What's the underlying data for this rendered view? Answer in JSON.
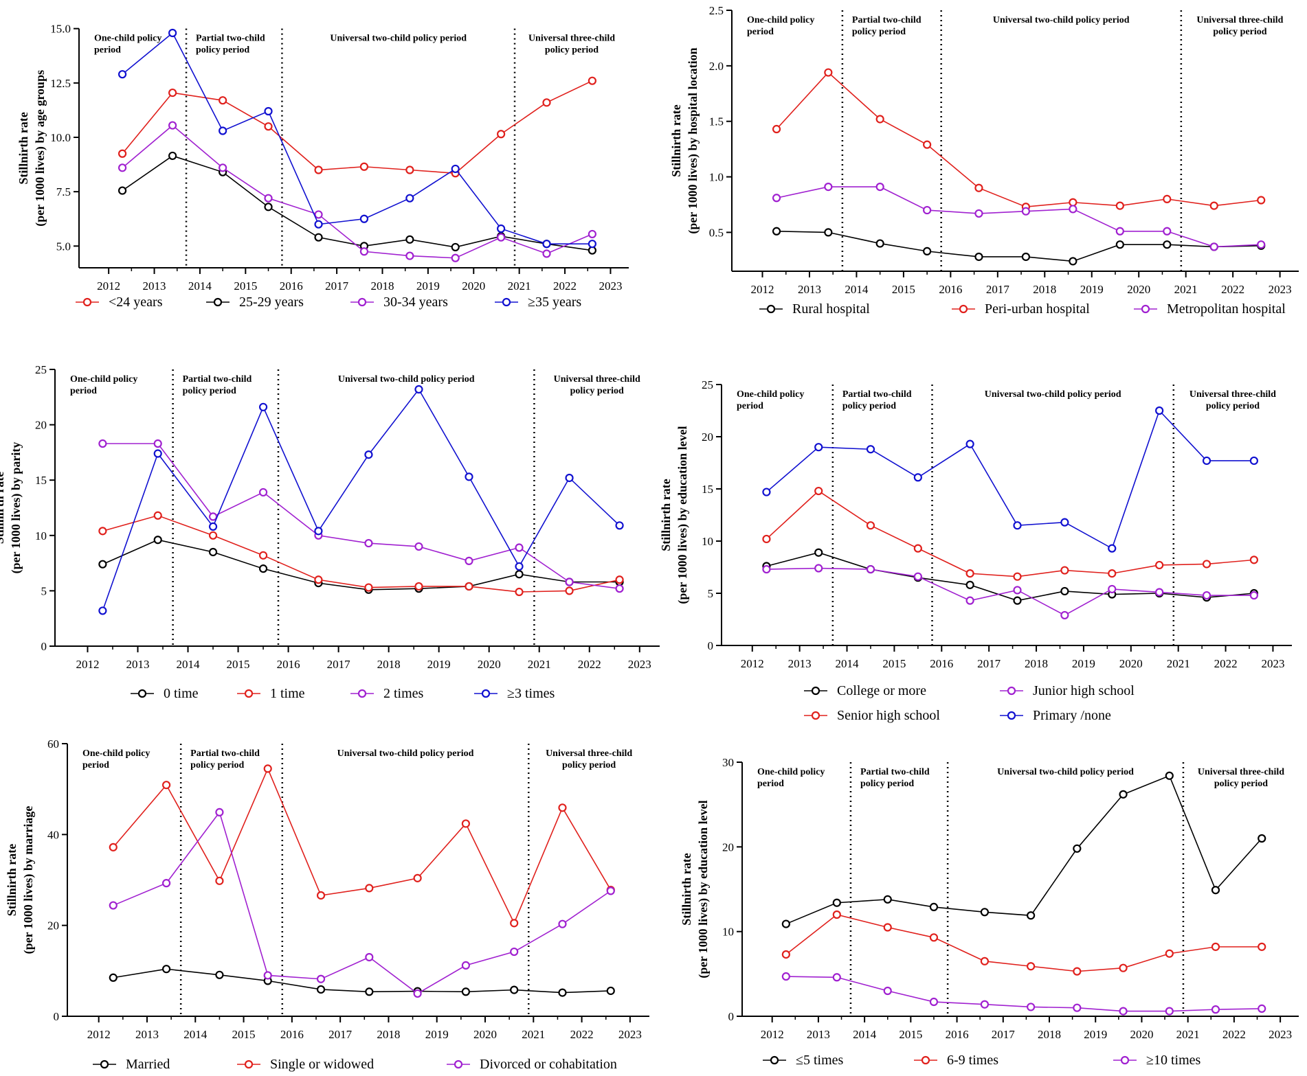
{
  "chart_data": [
    {
      "type": "line",
      "ylabel": [
        "Stillnirth rate",
        "(per 1000 lives) by age groups"
      ],
      "ylim": [
        4,
        16
      ],
      "yticks": [
        5.0,
        7.5,
        10.0,
        12.5,
        15.0
      ],
      "ytick_labels": [
        "5.0",
        "7.5",
        "10.0",
        "12.5",
        "15.0"
      ],
      "x_categories": [
        "2012",
        "2013",
        "2014",
        "2015",
        "2016",
        "2017",
        "2018",
        "2019",
        "2020",
        "2021",
        "2022",
        "2023"
      ],
      "periods": [
        {
          "lines": [
            "One-child policy",
            "period"
          ],
          "align": "left"
        },
        {
          "lines": [
            "Partial two-child",
            "policy period"
          ],
          "align": "left"
        },
        {
          "lines": [
            "Universal two-child policy period"
          ],
          "align": "center"
        },
        {
          "lines": [
            "Universal three-child",
            "policy period"
          ],
          "align": "center"
        }
      ],
      "dividers_x": [
        13.7,
        15.8,
        20.9
      ],
      "series": [
        {
          "name": "<24 years",
          "color": "#e0201c",
          "x": [
            12.3,
            13.4,
            14.5,
            15.5,
            16.6,
            17.6,
            18.6,
            19.6,
            20.6,
            21.6,
            22.6
          ],
          "values": [
            9.25,
            12.05,
            11.7,
            10.5,
            8.5,
            8.65,
            8.5,
            8.35,
            10.15,
            11.6,
            12.6
          ],
          "x_end": 22.5
        },
        {
          "name": "25-29 years",
          "color": "#000000",
          "x": [
            12.3,
            13.4,
            14.5,
            15.5,
            16.6,
            17.6,
            18.6,
            19.6,
            20.6,
            21.6,
            22.6
          ],
          "values": [
            7.55,
            9.15,
            8.4,
            6.8,
            5.4,
            5.0,
            5.3,
            4.95,
            5.45,
            5.1,
            4.8
          ]
        },
        {
          "name": "30-34 years",
          "color": "#a020d0",
          "x": [
            12.3,
            13.4,
            14.5,
            15.5,
            16.6,
            17.6,
            18.6,
            19.6,
            20.6,
            21.6,
            22.6
          ],
          "values": [
            8.6,
            10.55,
            8.6,
            7.2,
            6.45,
            4.75,
            4.55,
            4.45,
            5.4,
            4.65,
            5.55
          ]
        },
        {
          "name": "≥35 years",
          "color": "#1010d0",
          "x": [
            12.3,
            13.4,
            14.5,
            15.5,
            16.6,
            17.6,
            18.6,
            19.6,
            20.6,
            21.6,
            22.6
          ],
          "values": [
            12.9,
            14.8,
            10.3,
            11.2,
            6.0,
            6.25,
            7.2,
            8.55,
            5.8,
            5.1,
            5.1
          ]
        }
      ],
      "legend": [
        "<24 years",
        "25-29 years",
        "30-34 years",
        "≥35 years"
      ]
    },
    {
      "type": "line",
      "ylabel": [
        "Stillnirth rate",
        "(per 1000 lives) by hospital location"
      ],
      "ylim": [
        0.15,
        2.5
      ],
      "yticks": [
        0.5,
        1.0,
        1.5,
        2.0,
        2.5
      ],
      "ytick_labels": [
        "0.5",
        "1.0",
        "1.5",
        "2.0",
        "2.5"
      ],
      "x_categories": [
        "2012",
        "2013",
        "2014",
        "2015",
        "2016",
        "2017",
        "2018",
        "2019",
        "2020",
        "2021",
        "2022",
        "2023"
      ],
      "periods": [
        {
          "lines": [
            "One-child policy",
            "period"
          ],
          "align": "left"
        },
        {
          "lines": [
            "Partial two-child",
            "policy period"
          ],
          "align": "left"
        },
        {
          "lines": [
            "Universal two-child policy period"
          ],
          "align": "center"
        },
        {
          "lines": [
            "Universal three-child",
            "policy period"
          ],
          "align": "center"
        }
      ],
      "dividers_x": [
        13.7,
        15.8,
        20.9
      ],
      "series": [
        {
          "name": "Rural hospital",
          "color": "#000000",
          "x": [
            12.3,
            13.4,
            14.5,
            15.5,
            16.6,
            17.6,
            18.6,
            19.6,
            20.6,
            21.6,
            22.6
          ],
          "values": [
            0.51,
            0.5,
            0.4,
            0.33,
            0.28,
            0.28,
            0.24,
            0.39,
            0.39,
            0.37,
            0.38
          ]
        },
        {
          "name": "Peri-urban hospital",
          "color": "#e0201c",
          "x": [
            12.3,
            13.4,
            14.5,
            15.5,
            16.6,
            17.6,
            18.6,
            19.6,
            20.6,
            21.6,
            22.6
          ],
          "values": [
            1.43,
            1.94,
            1.52,
            1.29,
            0.9,
            0.73,
            0.77,
            0.74,
            0.8,
            0.74,
            0.79
          ]
        },
        {
          "name": "Metropolitan hospital",
          "color": "#a020d0",
          "x": [
            12.3,
            13.4,
            14.5,
            15.5,
            16.6,
            17.6,
            18.6,
            19.6,
            20.6,
            21.6,
            22.6
          ],
          "values": [
            0.81,
            0.91,
            0.91,
            0.7,
            0.67,
            0.69,
            0.71,
            0.51,
            0.51,
            0.37,
            0.39
          ]
        }
      ],
      "legend": [
        "Rural hospital",
        "Peri-urban hospital",
        "Metropolitan hospital"
      ]
    },
    {
      "type": "line",
      "ylabel": [
        "Stillnirth rate",
        "(per 1000 lives) by parity"
      ],
      "ylim": [
        0,
        25
      ],
      "yticks": [
        0,
        5,
        10,
        15,
        20,
        25
      ],
      "ytick_labels": [
        "0",
        "5",
        "10",
        "15",
        "20",
        "25"
      ],
      "x_categories": [
        "2012",
        "2013",
        "2014",
        "2015",
        "2016",
        "2017",
        "2018",
        "2019",
        "2020",
        "2021",
        "2022",
        "2023"
      ],
      "periods": [
        {
          "lines": [
            "One-child policy",
            "period"
          ],
          "align": "left"
        },
        {
          "lines": [
            "Partial two-child",
            "policy period"
          ],
          "align": "left"
        },
        {
          "lines": [
            "Universal two-child policy period"
          ],
          "align": "center"
        },
        {
          "lines": [
            "Universal three-child",
            "policy period"
          ],
          "align": "center"
        }
      ],
      "dividers_x": [
        13.7,
        15.8,
        20.9
      ],
      "series": [
        {
          "name": "0 time",
          "color": "#000000",
          "x": [
            12.3,
            13.4,
            14.5,
            15.5,
            16.6,
            17.6,
            18.6,
            19.6,
            20.6,
            21.6,
            22.6
          ],
          "values": [
            7.4,
            9.6,
            8.5,
            7.0,
            5.7,
            5.1,
            5.2,
            5.4,
            6.5,
            5.8,
            5.8
          ]
        },
        {
          "name": "1 time",
          "color": "#e0201c",
          "x": [
            12.3,
            13.4,
            14.5,
            15.5,
            16.6,
            17.6,
            18.6,
            19.6,
            20.6,
            21.6,
            22.6
          ],
          "values": [
            10.4,
            11.8,
            10.0,
            8.2,
            6.0,
            5.3,
            5.4,
            5.4,
            4.9,
            5.0,
            6.0
          ]
        },
        {
          "name": "2 times",
          "color": "#a020d0",
          "x": [
            12.3,
            13.4,
            14.5,
            15.5,
            16.6,
            17.6,
            18.6,
            19.6,
            20.6,
            21.6,
            22.6
          ],
          "values": [
            18.3,
            18.3,
            11.7,
            13.9,
            10.0,
            9.3,
            9.0,
            7.7,
            8.9,
            5.8,
            5.2
          ]
        },
        {
          "name": "≥3 times",
          "color": "#1010d0",
          "x": [
            12.3,
            13.4,
            14.5,
            15.5,
            16.6,
            17.6,
            18.6,
            19.6,
            20.6,
            21.6,
            22.6
          ],
          "values": [
            3.2,
            17.4,
            10.8,
            21.6,
            10.4,
            17.3,
            23.2,
            15.3,
            7.2,
            15.2,
            10.9
          ]
        }
      ],
      "legend": [
        "0 time",
        "1 time",
        "2 times",
        "≥3 times"
      ]
    },
    {
      "type": "line",
      "ylabel": [
        "Stillnirth rate",
        "(per 1000 lives) by education level"
      ],
      "ylim": [
        0,
        25
      ],
      "yticks": [
        0,
        5,
        10,
        15,
        20,
        25
      ],
      "ytick_labels": [
        "0",
        "5",
        "10",
        "15",
        "20",
        "25"
      ],
      "x_categories": [
        "2012",
        "2013",
        "2014",
        "2015",
        "2016",
        "2017",
        "2018",
        "2019",
        "2020",
        "2021",
        "2022",
        "2023"
      ],
      "periods": [
        {
          "lines": [
            "One-child policy",
            "period"
          ],
          "align": "left"
        },
        {
          "lines": [
            "Partial two-child",
            "policy period"
          ],
          "align": "left"
        },
        {
          "lines": [
            "Universal two-child policy period"
          ],
          "align": "center"
        },
        {
          "lines": [
            "Universal three-child",
            "policy period"
          ],
          "align": "center"
        }
      ],
      "dividers_x": [
        13.7,
        15.8,
        20.9
      ],
      "series": [
        {
          "name": "College or more",
          "color": "#000000",
          "x": [
            12.3,
            13.4,
            14.5,
            15.5,
            16.6,
            17.6,
            18.6,
            19.6,
            20.6,
            21.6,
            22.6
          ],
          "values": [
            7.6,
            8.9,
            7.3,
            6.5,
            5.8,
            4.3,
            5.2,
            4.9,
            5.0,
            4.6,
            5.0
          ]
        },
        {
          "name": "Junior high school",
          "color": "#a020d0",
          "x": [
            12.3,
            13.4,
            14.5,
            15.5,
            16.6,
            17.6,
            18.6,
            19.6,
            20.6,
            21.6,
            22.6
          ],
          "values": [
            7.3,
            7.4,
            7.3,
            6.6,
            4.3,
            5.3,
            2.9,
            5.4,
            5.1,
            4.8,
            4.8
          ]
        },
        {
          "name": "Senior high school",
          "color": "#e0201c",
          "x": [
            12.3,
            13.4,
            14.5,
            15.5,
            16.6,
            17.6,
            18.6,
            19.6,
            20.6,
            21.6,
            22.6
          ],
          "values": [
            10.2,
            14.8,
            11.5,
            9.3,
            6.9,
            6.6,
            7.2,
            6.9,
            7.7,
            7.8,
            8.2
          ]
        },
        {
          "name": "Primary /none",
          "color": "#1010d0",
          "x": [
            12.3,
            13.4,
            14.5,
            15.5,
            16.6,
            17.6,
            18.6,
            19.6,
            20.6,
            21.6,
            22.6
          ],
          "values": [
            14.7,
            19.0,
            18.8,
            16.1,
            19.3,
            11.5,
            11.8,
            9.3,
            22.5,
            17.7,
            17.7
          ]
        }
      ],
      "legend": [
        "College or more",
        "Junior high school",
        "Senior high school",
        "Primary /none"
      ]
    },
    {
      "type": "line",
      "ylabel": [
        "Stillnirth rate",
        "(per 1000 lives) by marriage"
      ],
      "ylim": [
        0,
        60
      ],
      "yticks": [
        0,
        20,
        40,
        60
      ],
      "ytick_labels": [
        "0",
        "20",
        "40",
        "60"
      ],
      "x_categories": [
        "2012",
        "2013",
        "2014",
        "2015",
        "2016",
        "2017",
        "2018",
        "2019",
        "2020",
        "2021",
        "2022",
        "2023"
      ],
      "periods": [
        {
          "lines": [
            "One-child policy",
            "period"
          ],
          "align": "left"
        },
        {
          "lines": [
            "Partial two-child",
            "policy period"
          ],
          "align": "left"
        },
        {
          "lines": [
            "Universal two-child policy period"
          ],
          "align": "center"
        },
        {
          "lines": [
            "Universal three-child",
            "policy period"
          ],
          "align": "center"
        }
      ],
      "dividers_x": [
        13.7,
        15.8,
        20.9
      ],
      "series": [
        {
          "name": "Married",
          "color": "#000000",
          "x": [
            12.3,
            13.4,
            14.5,
            15.5,
            16.6,
            17.6,
            18.6,
            19.6,
            20.6,
            21.6,
            22.6
          ],
          "values": [
            8.5,
            10.4,
            9.1,
            7.8,
            5.9,
            5.4,
            5.5,
            5.4,
            5.8,
            5.2,
            5.6
          ]
        },
        {
          "name": "Single or widowed",
          "color": "#e0201c",
          "x": [
            12.3,
            13.4,
            14.5,
            15.5,
            16.6,
            17.6,
            18.6,
            19.6,
            20.6,
            21.6,
            22.6
          ],
          "values": [
            37.2,
            50.9,
            29.8,
            54.5,
            26.6,
            28.2,
            30.4,
            42.4,
            20.5,
            45.9,
            27.8
          ]
        },
        {
          "name": "Divorced or cohabitation",
          "color": "#a020d0",
          "x": [
            12.3,
            13.4,
            14.5,
            15.5,
            16.6,
            17.6,
            18.6,
            19.6,
            20.6,
            21.6,
            22.6
          ],
          "values": [
            24.4,
            29.3,
            44.9,
            9.0,
            8.2,
            13.0,
            5.0,
            11.2,
            14.2,
            20.3,
            27.6
          ]
        }
      ],
      "legend": [
        "Married",
        "Single or widowed",
        "Divorced or cohabitation"
      ]
    },
    {
      "type": "line",
      "ylabel": [
        "Stillnirth rate",
        "(per 1000 lives) by education level"
      ],
      "ylim": [
        0,
        30
      ],
      "yticks": [
        0,
        10,
        20,
        30
      ],
      "ytick_labels": [
        "0",
        "10",
        "20",
        "30"
      ],
      "x_categories": [
        "2012",
        "2013",
        "2014",
        "2015",
        "2016",
        "2017",
        "2018",
        "2019",
        "2020",
        "2021",
        "2022",
        "2023"
      ],
      "periods": [
        {
          "lines": [
            "One-child policy",
            "period"
          ],
          "align": "left"
        },
        {
          "lines": [
            "Partial two-child",
            "policy period"
          ],
          "align": "left"
        },
        {
          "lines": [
            "Universal two-child policy period"
          ],
          "align": "center"
        },
        {
          "lines": [
            "Universal three-child",
            "policy period"
          ],
          "align": "center"
        }
      ],
      "dividers_x": [
        13.7,
        15.8,
        20.9
      ],
      "series": [
        {
          "name": "≤5 times",
          "color": "#000000",
          "x": [
            12.3,
            13.4,
            14.5,
            15.5,
            16.6,
            17.6,
            18.6,
            19.6,
            20.6,
            21.6,
            22.6
          ],
          "values": [
            10.9,
            13.4,
            13.8,
            12.9,
            12.3,
            11.9,
            19.8,
            26.2,
            28.4,
            14.9,
            21.0
          ]
        },
        {
          "name": "6-9 times",
          "color": "#e0201c",
          "x": [
            12.3,
            13.4,
            14.5,
            15.5,
            16.6,
            17.6,
            18.6,
            19.6,
            20.6,
            21.6,
            22.6
          ],
          "values": [
            7.3,
            12.0,
            10.5,
            9.3,
            6.5,
            5.9,
            5.3,
            5.7,
            7.4,
            8.2,
            8.2
          ]
        },
        {
          "name": "≥10 times",
          "color": "#a020d0",
          "x": [
            12.3,
            13.4,
            14.5,
            15.5,
            16.6,
            17.6,
            18.6,
            19.6,
            20.6,
            21.6,
            22.6
          ],
          "values": [
            4.7,
            4.6,
            3.0,
            1.7,
            1.4,
            1.1,
            1.0,
            0.6,
            0.6,
            0.8,
            0.9
          ]
        }
      ],
      "legend": [
        "≤5 times",
        "6-9 times",
        "≥10 times"
      ]
    }
  ]
}
